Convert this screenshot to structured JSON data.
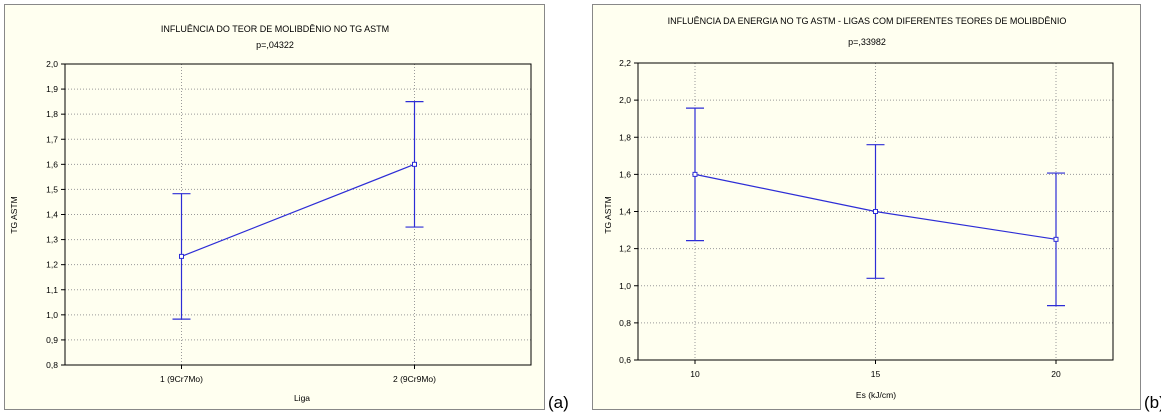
{
  "figure": {
    "panel_labels": [
      "(a)",
      "(b)"
    ],
    "colors": {
      "series": "#2d2dd6",
      "background": "#fffff0",
      "grid": "#9a9a9a",
      "frame": "#000000"
    }
  },
  "chart_data": [
    {
      "type": "line",
      "title": "INFLUÊNCIA DO TEOR DE MOLIBDÊNIO NO TG ASTM",
      "subtitle": "p=,04322",
      "xlabel": "Liga",
      "ylabel": "TG ASTM",
      "categories": [
        "1 (9Cr7Mo)",
        "2 (9Cr9Mo)"
      ],
      "series": [
        {
          "values": [
            1.233,
            1.6
          ],
          "error_low": [
            0.983,
            1.35
          ],
          "error_high": [
            1.483,
            1.85
          ]
        }
      ],
      "ylim": [
        0.8,
        2.0
      ],
      "yticks": [
        0.8,
        0.9,
        1.0,
        1.1,
        1.2,
        1.3,
        1.4,
        1.5,
        1.6,
        1.7,
        1.8,
        1.9,
        2.0
      ],
      "ytick_labels": [
        "0,8",
        "0,9",
        "1,0",
        "1,1",
        "1,2",
        "1,3",
        "1,4",
        "1,5",
        "1,6",
        "1,7",
        "1,8",
        "1,9",
        "2,0"
      ],
      "grid": true,
      "marker": "open-square",
      "error_bars": true
    },
    {
      "type": "line",
      "title": "INFLUÊNCIA DA ENERGIA NO TG ASTM - LIGAS COM DIFERENTES TEORES DE MOLIBDÊNIO",
      "subtitle": "p=,33982",
      "xlabel": "Es (kJ/cm)",
      "ylabel": "TG ASTM",
      "categories": [
        "10",
        "15",
        "20"
      ],
      "series": [
        {
          "values": [
            1.6,
            1.4,
            1.25
          ],
          "error_low": [
            1.243,
            1.04,
            0.893
          ],
          "error_high": [
            1.957,
            1.76,
            1.607
          ]
        }
      ],
      "ylim": [
        0.6,
        2.2
      ],
      "yticks": [
        0.6,
        0.8,
        1.0,
        1.2,
        1.4,
        1.6,
        1.8,
        2.0,
        2.2
      ],
      "ytick_labels": [
        "0,6",
        "0,8",
        "1,0",
        "1,2",
        "1,4",
        "1,6",
        "1,8",
        "2,0",
        "2,2"
      ],
      "grid": true,
      "marker": "open-square",
      "error_bars": true
    }
  ]
}
